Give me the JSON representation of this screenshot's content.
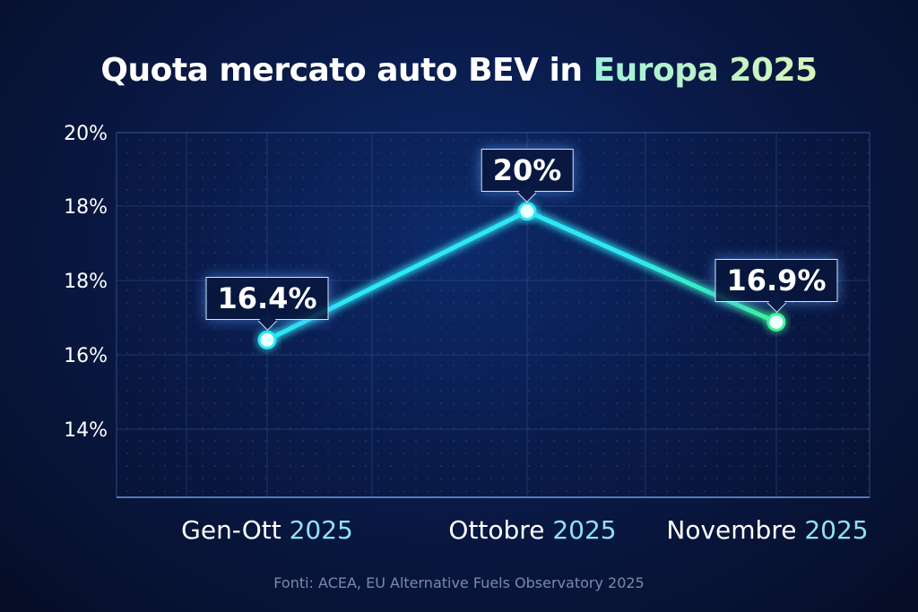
{
  "chart_data": {
    "type": "line",
    "title": {
      "main": "Quota mercato auto BEV in",
      "highlight": "Europa 2025"
    },
    "categories": [
      {
        "label": "Gen-Ott",
        "year": "2025"
      },
      {
        "label": "Ottobre",
        "year": "2025"
      },
      {
        "label": "Novembre",
        "year": "2025"
      }
    ],
    "values": [
      16.4,
      20,
      16.9
    ],
    "data_labels": [
      "16.4%",
      "20%",
      "16.9%"
    ],
    "y_tick_labels": [
      "20%",
      "18%",
      "18%",
      "16%",
      "14%"
    ],
    "ylim": [
      12,
      22.2
    ],
    "grid": true,
    "colors": {
      "line": "#2ee6f5",
      "line_end": "#3ff29a",
      "background": "#0a1a48",
      "grid": "#3f6fb8"
    }
  },
  "source": "Fonti: ACEA, EU Alternative Fuels Observatory 2025"
}
